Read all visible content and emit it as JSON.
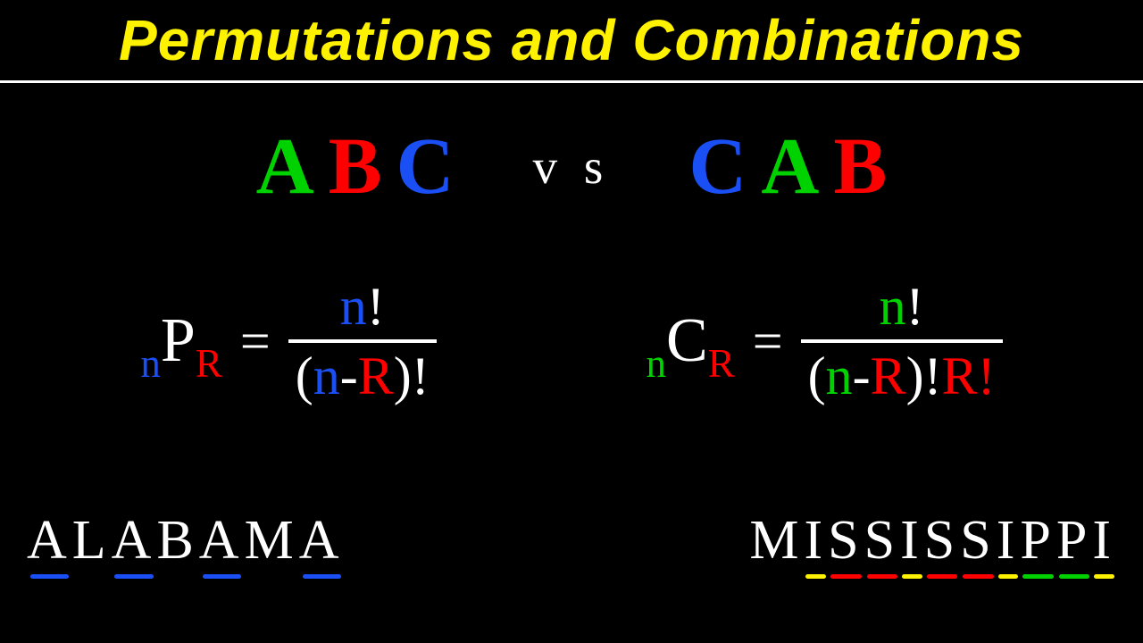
{
  "title": {
    "text": "Permutations and Combinations",
    "color": "#fff200"
  },
  "colors": {
    "green": "#00d200",
    "red": "#ff0000",
    "blue": "#1a4ff5",
    "white": "#ffffff",
    "yellow": "#fff200"
  },
  "abc_row": {
    "left": [
      {
        "char": "A",
        "color": "#00d200"
      },
      {
        "char": "B",
        "color": "#ff0000"
      },
      {
        "char": "C",
        "color": "#1a4ff5"
      }
    ],
    "vs": "v s",
    "right": [
      {
        "char": "C",
        "color": "#1a4ff5"
      },
      {
        "char": "A",
        "color": "#00d200"
      },
      {
        "char": "B",
        "color": "#ff0000"
      }
    ]
  },
  "formulas": {
    "perm": {
      "n_sub": {
        "text": "n",
        "color": "#1a4ff5"
      },
      "P": {
        "text": "P",
        "color": "#ffffff"
      },
      "r_sub": {
        "text": "R",
        "color": "#ff0000"
      },
      "eq": "=",
      "num_n": {
        "text": "n",
        "color": "#1a4ff5"
      },
      "num_bang": {
        "text": "!",
        "color": "#ffffff"
      },
      "den_open": "(",
      "den_n": {
        "text": "n",
        "color": "#1a4ff5"
      },
      "den_minus": "-",
      "den_r": {
        "text": "R",
        "color": "#ff0000"
      },
      "den_close": ")!",
      "den_extra": ""
    },
    "comb": {
      "n_sub": {
        "text": "n",
        "color": "#00d200"
      },
      "C": {
        "text": "C",
        "color": "#ffffff"
      },
      "r_sub": {
        "text": "R",
        "color": "#ff0000"
      },
      "eq": "=",
      "num_n": {
        "text": "n",
        "color": "#00d200"
      },
      "num_bang": {
        "text": "!",
        "color": "#ffffff"
      },
      "den_open": "(",
      "den_n": {
        "text": "n",
        "color": "#00d200"
      },
      "den_minus": "-",
      "den_r": {
        "text": "R",
        "color": "#ff0000"
      },
      "den_close": ")!",
      "den_r2": {
        "text": "R",
        "color": "#ff0000"
      },
      "den_bang2": {
        "text": "!",
        "color": "#ff0000"
      }
    }
  },
  "words": {
    "alabama": [
      {
        "char": "A",
        "underline": "#1a4ff5"
      },
      {
        "char": "L",
        "underline": null
      },
      {
        "char": "A",
        "underline": "#1a4ff5"
      },
      {
        "char": "B",
        "underline": null
      },
      {
        "char": "A",
        "underline": "#1a4ff5"
      },
      {
        "char": "M",
        "underline": null
      },
      {
        "char": "A",
        "underline": "#1a4ff5"
      }
    ],
    "mississippi": [
      {
        "char": "M",
        "underline": null
      },
      {
        "char": "I",
        "underline": "#fff200"
      },
      {
        "char": "S",
        "underline": "#ff0000"
      },
      {
        "char": "S",
        "underline": "#ff0000"
      },
      {
        "char": "I",
        "underline": "#fff200"
      },
      {
        "char": "S",
        "underline": "#ff0000"
      },
      {
        "char": "S",
        "underline": "#ff0000"
      },
      {
        "char": "I",
        "underline": "#fff200"
      },
      {
        "char": "P",
        "underline": "#00d200"
      },
      {
        "char": "P",
        "underline": "#00d200"
      },
      {
        "char": "I",
        "underline": "#fff200"
      }
    ]
  }
}
